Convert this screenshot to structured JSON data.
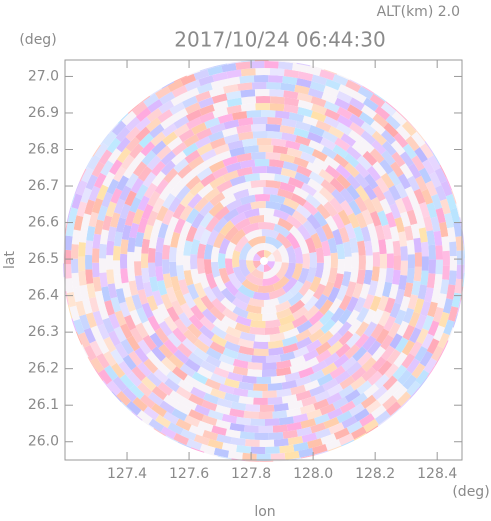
{
  "chart_data": {
    "type": "radar-ppi",
    "title": "2017/10/24 06:44:30",
    "subtitle": "ALT(km) 2.0",
    "x_label": "lon",
    "y_label": "lat",
    "x_unit": "(deg)",
    "y_unit": "(deg)",
    "xlim": [
      127.2,
      128.48
    ],
    "ylim": [
      25.95,
      27.045
    ],
    "xticks": [
      127.4,
      127.6,
      127.8,
      {
        "value": 128.0,
        "label": "128.0"
      },
      128.2,
      128.4
    ],
    "yticks": [
      {
        "value": 26.0,
        "label": "26.0"
      },
      26.1,
      26.2,
      26.3,
      26.4,
      26.5,
      26.6,
      26.7,
      26.8,
      26.9,
      {
        "value": 27.0,
        "label": "27.0"
      }
    ]
  }
}
